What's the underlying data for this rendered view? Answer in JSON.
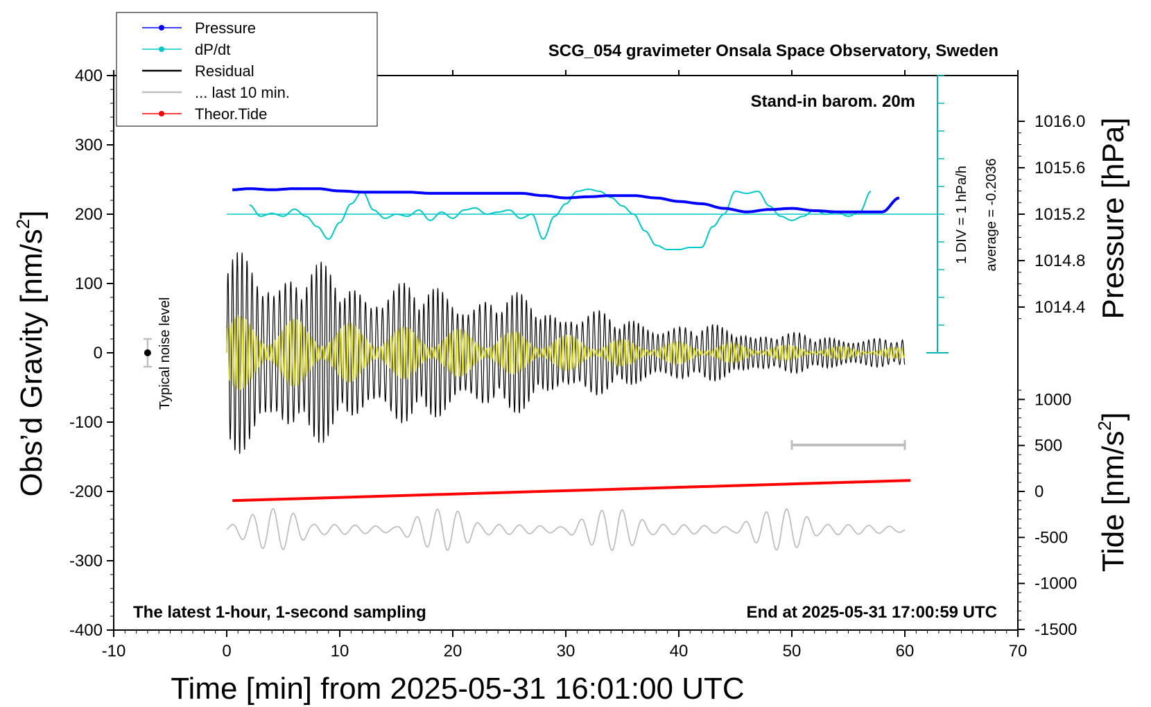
{
  "chart_data": {
    "type": "line",
    "title": "SCG_054 gravimeter Onsala Space Observatory, Sweden",
    "xlabel": "Time [min] from 2025-05-31 16:01:00 UTC",
    "ylabel_left": "Obs’d Gravity [nm/s",
    "ylabel_left_sup": "2",
    "ylabel_left_end": "]",
    "ylabel_right_pressure": "Pressure [hPa]",
    "ylabel_right_tide": "Tide [nm/s",
    "ylabel_right_tide_sup": "2",
    "ylabel_right_tide_end": "]",
    "xlim": [
      -10,
      70
    ],
    "ylim_left": [
      -400,
      400
    ],
    "xticks": [
      "-10",
      "0",
      "10",
      "20",
      "30",
      "40",
      "50",
      "60",
      "70"
    ],
    "yticks_left": [
      "400",
      "300",
      "200",
      "100",
      "0",
      "-100",
      "-200",
      "-300",
      "-400"
    ],
    "pressure_ticks": [
      "1016.0",
      "1015.6",
      "1015.2",
      "1014.8",
      "1014.4"
    ],
    "tide_ticks": [
      "1000",
      "500",
      "0",
      "-500",
      "-1000",
      "-1500"
    ],
    "legend": [
      {
        "name": "Pressure",
        "color": "#0000ff",
        "marker": true
      },
      {
        "name": "dP/dt",
        "color": "#00c8c8",
        "marker": true
      },
      {
        "name": "Residual",
        "color": "#000000",
        "marker": false
      },
      {
        "name": "... last 10 min.",
        "color": "#bebebe",
        "marker": false
      },
      {
        "name": "Theor.Tide",
        "color": "#ff0000",
        "marker": true
      }
    ],
    "annotations": {
      "standin": "Stand-in barom. 20m",
      "div": "1 DIV = 1 hPa/h",
      "average": "average = -0.2036",
      "noise": "Typical noise level",
      "latest": "The latest 1-hour, 1-second sampling",
      "end": "End at 2025-05-31 17:00:59 UTC"
    },
    "series": [
      {
        "name": "Pressure",
        "color": "#0000ff",
        "x": [
          0.5,
          2,
          4,
          6,
          8,
          10,
          12,
          14,
          16,
          18,
          20,
          22,
          24,
          26,
          28,
          30,
          32,
          34,
          36,
          38,
          40,
          42,
          44,
          46,
          48,
          50,
          52,
          54,
          56,
          58,
          59.5
        ],
        "y": [
          1015.41,
          1015.42,
          1015.41,
          1015.42,
          1015.42,
          1015.4,
          1015.39,
          1015.39,
          1015.39,
          1015.38,
          1015.38,
          1015.38,
          1015.38,
          1015.38,
          1015.36,
          1015.34,
          1015.35,
          1015.36,
          1015.36,
          1015.34,
          1015.31,
          1015.29,
          1015.25,
          1015.22,
          1015.24,
          1015.25,
          1015.23,
          1015.22,
          1015.22,
          1015.22,
          1015.34
        ]
      },
      {
        "name": "dP/dt",
        "color": "#00c8c8",
        "x": [
          2,
          3,
          4,
          5,
          6,
          7,
          8,
          9,
          10,
          11,
          12,
          13,
          14,
          15,
          16,
          17,
          18,
          19,
          20,
          21,
          22,
          23,
          24,
          25,
          26,
          27,
          28,
          29,
          30,
          31,
          32,
          33,
          34,
          35,
          36,
          37,
          38,
          39,
          40,
          41,
          42,
          43,
          44,
          45,
          46,
          47,
          48,
          49,
          50,
          51,
          52,
          53,
          54,
          55,
          56,
          57
        ],
        "y": [
          0.22,
          -0.05,
          0.02,
          -0.05,
          0.12,
          -0.05,
          -0.3,
          -0.6,
          -0.2,
          0.25,
          0.55,
          0.1,
          -0.1,
          0.0,
          -0.05,
          0.1,
          -0.15,
          0.05,
          -0.1,
          0.1,
          0.15,
          0.0,
          0.05,
          0.1,
          -0.1,
          0.0,
          -0.6,
          -0.05,
          0.25,
          0.55,
          0.6,
          0.55,
          0.4,
          0.2,
          0.0,
          -0.4,
          -0.75,
          -0.85,
          -0.85,
          -0.8,
          -0.8,
          -0.3,
          0.0,
          0.55,
          0.5,
          0.55,
          0.2,
          -0.05,
          -0.15,
          -0.05,
          0.1,
          0.0,
          0.05,
          -0.05,
          0.05,
          0.55
        ]
      },
      {
        "name": "Residual",
        "color": "#000000",
        "envelope_t": [
          0,
          2,
          5,
          10,
          15,
          20,
          25,
          30,
          35,
          40,
          45,
          50,
          55,
          60
        ],
        "envelope_a": [
          160,
          150,
          145,
          125,
          110,
          100,
          90,
          75,
          55,
          45,
          40,
          30,
          25,
          22
        ]
      },
      {
        "name": "... last 10 min.",
        "color": "#bebebe"
      },
      {
        "name": "Theor.Tide",
        "color": "#ff0000",
        "x": [
          0.5,
          60.5
        ],
        "y_tide_units": [
          -100,
          120
        ]
      }
    ],
    "noise_bar": {
      "x": -7,
      "y_center": 0,
      "half_height": 20
    },
    "ten_min_bar": {
      "x_start": 50,
      "x_end": 60
    }
  }
}
